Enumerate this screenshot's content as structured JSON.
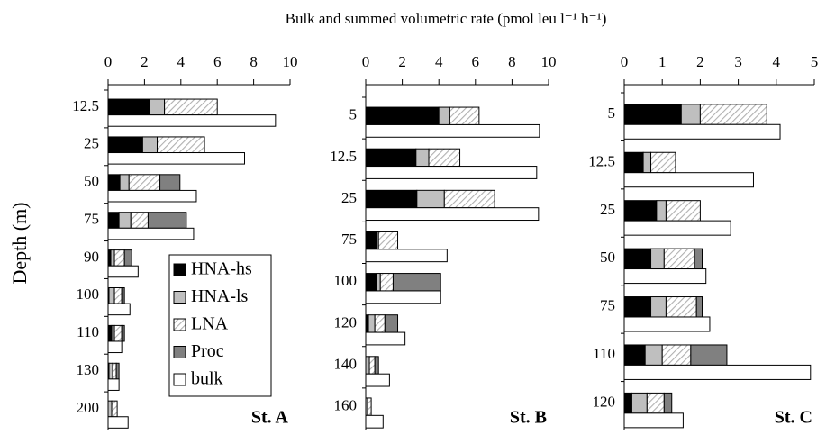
{
  "chart_data": [
    {
      "type": "bar",
      "orientation": "horizontal",
      "panel_label": "St. A",
      "xlabel": "Bulk and summed volumetric rate (pmol leu l⁻¹ h⁻¹)",
      "ylabel": "Depth (m)",
      "categories": [
        "12.5",
        "25",
        "50",
        "75",
        "90",
        "100",
        "110",
        "130",
        "200"
      ],
      "xlim": [
        0,
        10
      ],
      "xticks": [
        0,
        2,
        4,
        6,
        8,
        10
      ],
      "series": [
        {
          "name": "HNA-hs",
          "color": "#000000",
          "values": [
            2.3,
            1.9,
            0.65,
            0.6,
            0.15,
            0.05,
            0.2,
            0.05,
            0
          ]
        },
        {
          "name": "HNA-ls",
          "color": "#bfbfbf",
          "values": [
            0.8,
            0.8,
            0.5,
            0.65,
            0.2,
            0.3,
            0.15,
            0.2,
            0.2
          ]
        },
        {
          "name": "LNA",
          "color": "#bfbfbf",
          "pattern": "hatch",
          "values": [
            2.9,
            2.6,
            1.7,
            0.95,
            0.55,
            0.4,
            0.4,
            0.2,
            0.3
          ]
        },
        {
          "name": "Proc",
          "color": "#808080",
          "values": [
            0,
            0,
            1.1,
            2.1,
            0.4,
            0.15,
            0.15,
            0.15,
            0
          ]
        }
      ],
      "bulk": {
        "name": "bulk",
        "color": "#ffffff",
        "values": [
          9.2,
          7.5,
          4.85,
          4.7,
          1.65,
          1.2,
          0.75,
          0.6,
          1.1
        ]
      }
    },
    {
      "type": "bar",
      "orientation": "horizontal",
      "panel_label": "St. B",
      "categories": [
        "5",
        "12.5",
        "25",
        "75",
        "100",
        "120",
        "140",
        "160"
      ],
      "xlim": [
        0,
        10
      ],
      "xticks": [
        0,
        2,
        4,
        6,
        8,
        10
      ],
      "series": [
        {
          "color": "#000000",
          "values": [
            4.0,
            2.75,
            2.8,
            0.6,
            0.6,
            0.15,
            0,
            0
          ]
        },
        {
          "color": "#bfbfbf",
          "values": [
            0.6,
            0.7,
            1.5,
            0.1,
            0.2,
            0.35,
            0.2,
            0.1
          ]
        },
        {
          "color": "#bfbfbf",
          "pattern": "hatch",
          "values": [
            1.6,
            1.7,
            2.75,
            1.05,
            0.7,
            0.55,
            0.3,
            0.2
          ]
        },
        {
          "color": "#808080",
          "values": [
            0,
            0,
            0,
            0,
            2.6,
            0.7,
            0.2,
            0
          ]
        }
      ],
      "bulk": {
        "color": "#ffffff",
        "values": [
          9.5,
          9.35,
          9.45,
          4.45,
          4.1,
          2.15,
          1.3,
          0.95
        ]
      }
    },
    {
      "type": "bar",
      "orientation": "horizontal",
      "panel_label": "St. C",
      "categories": [
        "5",
        "12.5",
        "25",
        "50",
        "75",
        "110",
        "120"
      ],
      "xlim": [
        0,
        5
      ],
      "xticks": [
        0,
        1,
        2,
        3,
        4,
        5
      ],
      "series": [
        {
          "color": "#000000",
          "values": [
            1.5,
            0.5,
            0.85,
            0.7,
            0.7,
            0.55,
            0.2
          ]
        },
        {
          "color": "#bfbfbf",
          "values": [
            0.5,
            0.2,
            0.25,
            0.35,
            0.4,
            0.45,
            0.4
          ]
        },
        {
          "color": "#bfbfbf",
          "pattern": "hatch",
          "values": [
            1.75,
            0.65,
            0.9,
            0.8,
            0.8,
            0.75,
            0.45
          ]
        },
        {
          "color": "#808080",
          "values": [
            0,
            0,
            0,
            0.2,
            0.15,
            0.95,
            0.2
          ]
        }
      ],
      "bulk": {
        "color": "#ffffff",
        "values": [
          4.1,
          3.4,
          2.8,
          2.15,
          2.25,
          4.9,
          1.55
        ]
      }
    }
  ]
}
